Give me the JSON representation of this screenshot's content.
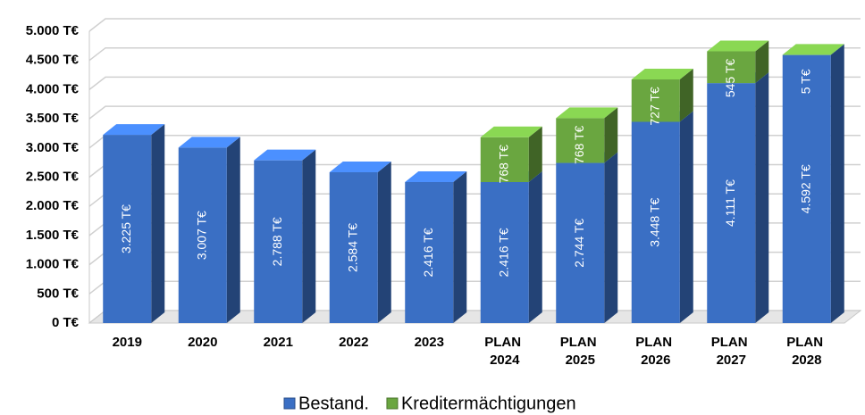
{
  "chart_data": {
    "type": "bar",
    "stacked": true,
    "categories": [
      "2019",
      "2020",
      "2021",
      "2022",
      "2023",
      "PLAN 2024",
      "PLAN 2025",
      "PLAN 2026",
      "PLAN 2027",
      "PLAN 2028"
    ],
    "series": [
      {
        "name": "Bestand.",
        "color": "#3a6fc4",
        "values": [
          3225,
          3007,
          2788,
          2584,
          2416,
          2416,
          2744,
          3448,
          4111,
          4592
        ],
        "value_labels": [
          "3.225 T€",
          "3.007 T€",
          "2.788 T€",
          "2.584 T€",
          "2.416 T€",
          "2.416 T€",
          "2.744 T€",
          "3.448 T€",
          "4.111 T€",
          "4.592 T€"
        ]
      },
      {
        "name": "Kreditermächtigungen",
        "color": "#6aa640",
        "values": [
          null,
          null,
          null,
          null,
          null,
          768,
          768,
          727,
          545,
          5
        ],
        "value_labels": [
          null,
          null,
          null,
          null,
          null,
          "768 T€",
          "768 T€",
          "727 T€",
          "545 T€",
          "5 T€"
        ]
      }
    ],
    "ylim": [
      0,
      5000
    ],
    "yticks": [
      {
        "value": 0,
        "label": "0 T€"
      },
      {
        "value": 500,
        "label": "500 T€"
      },
      {
        "value": 1000,
        "label": "1.000 T€"
      },
      {
        "value": 1500,
        "label": "1.500 T€"
      },
      {
        "value": 2000,
        "label": "2.000 T€"
      },
      {
        "value": 2500,
        "label": "2.500 T€"
      },
      {
        "value": 3000,
        "label": "3.000 T€"
      },
      {
        "value": 3500,
        "label": "3.500 T€"
      },
      {
        "value": 4000,
        "label": "4.000 T€"
      },
      {
        "value": 4500,
        "label": "4.500 T€"
      },
      {
        "value": 5000,
        "label": "5.000 T€"
      }
    ],
    "grid": true,
    "legend": "bottom"
  }
}
